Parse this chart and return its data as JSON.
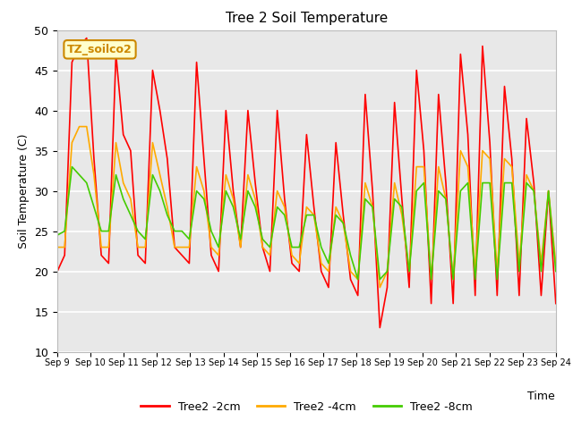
{
  "title": "Tree 2 Soil Temperature",
  "xlabel": "Time",
  "ylabel": "Soil Temperature (C)",
  "ylim": [
    10,
    50
  ],
  "yticks": [
    10,
    15,
    20,
    25,
    30,
    35,
    40,
    45,
    50
  ],
  "x_labels": [
    "Sep 9",
    "Sep 10",
    "Sep 11",
    "Sep 12",
    "Sep 13",
    "Sep 14",
    "Sep 15",
    "Sep 16",
    "Sep 17",
    "Sep 18",
    "Sep 19",
    "Sep 20",
    "Sep 21",
    "Sep 22",
    "Sep 23",
    "Sep 24"
  ],
  "annotation_text": "TZ_soilco2",
  "annotation_color": "#cc8800",
  "annotation_bg": "#ffffcc",
  "bg_color": "#e8e8e8",
  "legend_labels": [
    "Tree2 -2cm",
    "Tree2 -4cm",
    "Tree2 -8cm"
  ],
  "series": {
    "Tree2 -2cm": {
      "color": "#ff0000",
      "values": [
        20,
        22,
        46,
        48,
        49,
        34,
        22,
        21,
        47,
        37,
        35,
        22,
        21,
        45,
        40,
        34,
        23,
        22,
        21,
        46,
        34,
        22,
        20,
        40,
        30,
        23,
        40,
        31,
        23,
        20,
        40,
        29,
        21,
        20,
        37,
        28,
        20,
        18,
        36,
        27,
        19,
        17,
        42,
        30,
        13,
        18,
        41,
        29,
        18,
        45,
        35,
        16,
        42,
        31,
        16,
        47,
        37,
        17,
        48,
        36,
        17,
        43,
        34,
        17,
        39,
        31,
        17,
        30,
        16
      ]
    },
    "Tree2 -4cm": {
      "color": "#ffaa00",
      "values": [
        23,
        23,
        36,
        38,
        38,
        32,
        23,
        23,
        36,
        31,
        29,
        23,
        23,
        36,
        32,
        28,
        23,
        23,
        23,
        33,
        30,
        23,
        22,
        32,
        29,
        23,
        32,
        29,
        23,
        22,
        30,
        28,
        22,
        21,
        28,
        27,
        21,
        20,
        28,
        26,
        20,
        19,
        31,
        28,
        18,
        20,
        31,
        27,
        20,
        33,
        33,
        19,
        33,
        29,
        19,
        35,
        33,
        20,
        35,
        34,
        20,
        34,
        33,
        21,
        32,
        30,
        21,
        30,
        21
      ]
    },
    "Tree2 -8cm": {
      "color": "#44cc00",
      "values": [
        24.5,
        25,
        33,
        32,
        31,
        28,
        25,
        25,
        32,
        29,
        27,
        25,
        24,
        32,
        30,
        27,
        25,
        25,
        24,
        30,
        29,
        25,
        23,
        30,
        28,
        24,
        30,
        28,
        24,
        23,
        28,
        27,
        23,
        23,
        27,
        27,
        23,
        21,
        27,
        26,
        22,
        19,
        29,
        28,
        19,
        20,
        29,
        28,
        20,
        30,
        31,
        19,
        30,
        29,
        19,
        30,
        31,
        19,
        31,
        31,
        19,
        31,
        31,
        20,
        31,
        30,
        20,
        30,
        20
      ]
    }
  }
}
